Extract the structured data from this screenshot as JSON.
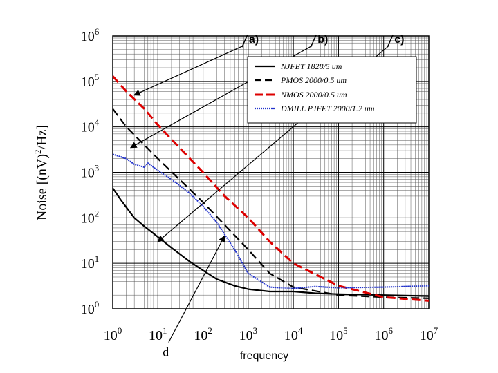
{
  "chart_data": {
    "type": "line",
    "xscale": "log",
    "yscale": "log",
    "xlim": [
      1,
      10000000
    ],
    "ylim": [
      1,
      1000000
    ],
    "xlabel": "frequency",
    "ylabel_parts": {
      "a": "Noise [(nV)",
      "sup": "2",
      "b": "/Hz]"
    },
    "x_ticks": [
      {
        "base": "10",
        "exp": "0",
        "value": 1
      },
      {
        "base": "10",
        "exp": "1",
        "value": 10
      },
      {
        "base": "10",
        "exp": "2",
        "value": 100
      },
      {
        "base": "10",
        "exp": "3",
        "value": 1000
      },
      {
        "base": "10",
        "exp": "4",
        "value": 10000
      },
      {
        "base": "10",
        "exp": "5",
        "value": 100000
      },
      {
        "base": "10",
        "exp": "6",
        "value": 1000000
      },
      {
        "base": "10",
        "exp": "7",
        "value": 10000000
      }
    ],
    "y_ticks": [
      {
        "base": "10",
        "exp": "0",
        "value": 1
      },
      {
        "base": "10",
        "exp": "1",
        "value": 10
      },
      {
        "base": "10",
        "exp": "2",
        "value": 100
      },
      {
        "base": "10",
        "exp": "3",
        "value": 1000
      },
      {
        "base": "10",
        "exp": "4",
        "value": 10000
      },
      {
        "base": "10",
        "exp": "5",
        "value": 100000
      },
      {
        "base": "10",
        "exp": "6",
        "value": 1000000
      }
    ],
    "series": [
      {
        "name": "NJFET 1828/5 um",
        "color": "#000000",
        "style": "solid",
        "x": [
          1,
          1.5,
          2,
          3,
          5,
          10,
          20,
          50,
          100,
          200,
          500,
          1000,
          3000,
          10000,
          30000,
          100000,
          1000000,
          10000000
        ],
        "y": [
          450,
          250,
          170,
          100,
          65,
          38,
          22,
          11,
          7,
          4.5,
          3.2,
          2.7,
          2.4,
          2.4,
          2.2,
          2.1,
          2.0,
          1.9
        ]
      },
      {
        "name": "PMOS 2000/0.5 um",
        "color": "#000000",
        "style": "dashed",
        "x": [
          1,
          2,
          5,
          10,
          30,
          100,
          300,
          1000,
          3000,
          10000,
          100000,
          1000000,
          10000000
        ],
        "y": [
          25000,
          10000,
          4000,
          2000,
          700,
          220,
          70,
          20,
          6,
          3,
          2.0,
          1.8,
          1.7
        ]
      },
      {
        "name": "NMOS 2000/0.5 um",
        "color": "#dd0000",
        "style": "dashed",
        "x": [
          1,
          2,
          5,
          10,
          30,
          100,
          300,
          1000,
          3000,
          10000,
          100000,
          1000000,
          10000000
        ],
        "y": [
          130000,
          60000,
          25000,
          11000,
          3500,
          1000,
          300,
          100,
          30,
          10,
          3.2,
          1.8,
          1.5
        ]
      },
      {
        "name": "DMILL PJFET 2000/1.2 um",
        "color": "#2233cc",
        "style": "dotted",
        "x": [
          1,
          2,
          3,
          5,
          6,
          10,
          20,
          50,
          100,
          200,
          500,
          1000,
          3000,
          10000,
          30000,
          100000,
          1000000,
          10000000
        ],
        "y": [
          2500,
          2000,
          1500,
          1300,
          1600,
          1100,
          700,
          350,
          180,
          80,
          20,
          6,
          3,
          2.8,
          3.1,
          2.9,
          3.0,
          3.2
        ]
      }
    ],
    "annotations": [
      {
        "text": "a)",
        "label_pos": [
          900,
          700000
        ],
        "arrow_to": [
          3,
          50000
        ]
      },
      {
        "text": "b)",
        "label_pos": [
          30000,
          700000
        ],
        "arrow_to": [
          2.5,
          3500
        ]
      },
      {
        "text": "c)",
        "label_pos": [
          1500000,
          700000
        ],
        "arrow_to": [
          10,
          30
        ]
      },
      {
        "text": "d",
        "label_pos": [
          15,
          0.12
        ],
        "arrow_to": [
          300,
          40
        ]
      }
    ],
    "legend": "top-right",
    "grid": true
  }
}
